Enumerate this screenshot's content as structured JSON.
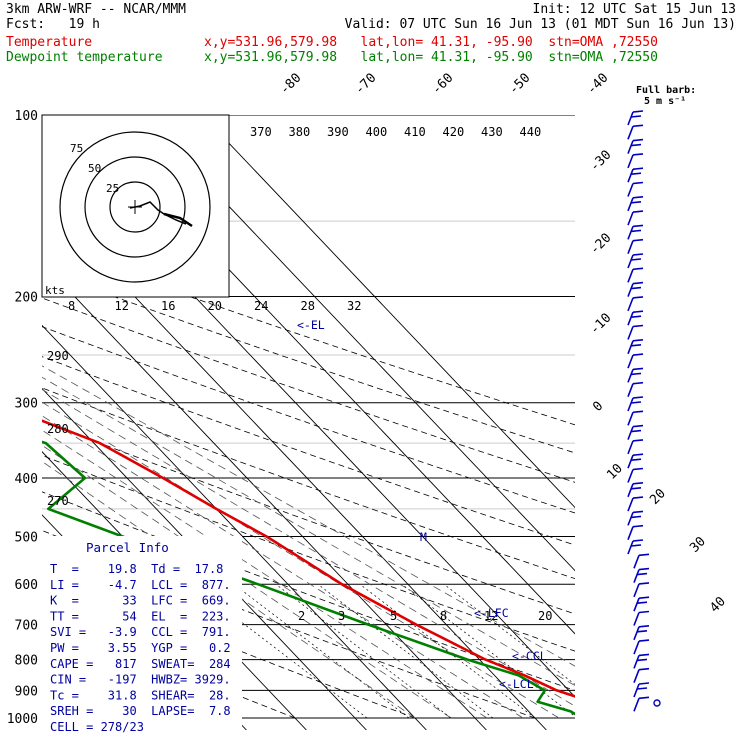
{
  "header": {
    "line1_left": "3km ARW-WRF -- NCAR/MMM",
    "line1_right": "Init: 12 UTC Sat 15 Jun 13",
    "line2_left": "Fcst:   19 h",
    "line2_right": "Valid: 07 UTC Sun 16 Jun 13 (01 MDT Sun 16 Jun 13)",
    "temp_label": "Temperature",
    "temp_info": "x,y=531.96,579.98   lat,lon= 41.31, -95.90  stn=OMA ,72550",
    "dew_label": "Dewpoint temperature",
    "dew_info": "x,y=531.96,579.98   lat,lon= 41.31, -95.90  stn=OMA ,72550"
  },
  "wind_legend": {
    "title": "Full barb:",
    "value": "5 m s⁻¹"
  },
  "colors": {
    "temperature": "#e00000",
    "dewpoint": "#008000",
    "barbs": "#0000c0",
    "grid": "#000000",
    "parcel": "#0000a0"
  },
  "hodograph": {
    "unit_label": "kts",
    "ring_labels": [
      "25",
      "50",
      "75"
    ],
    "ring_values": [
      25,
      50,
      75
    ]
  },
  "parcel_info": {
    "title": "Parcel Info",
    "rows": [
      "T  =    19.8  Td =  17.8",
      "LI =    -4.7  LCL =  877.",
      "K  =      33  LFC =  669.",
      "TT =      54  EL  =  223.",
      "SVI =   -3.9  CCL =  791.",
      "PW =    3.55  YGP =   0.2",
      "CAPE =   817  SWEAT=  284",
      "CIN =   -197  HWBZ= 3929.",
      "Tc =    31.8  SHEAR=  28.",
      "SREH =    30  LAPSE=  7.8",
      "CELL = 278/23"
    ]
  },
  "level_labels": {
    "el": "<-EL",
    "lfc": "<-LFC",
    "ccl": "<-CCL",
    "lcl": "<-LCL",
    "m": "M"
  },
  "chart_data": {
    "type": "line",
    "title": "",
    "ylabel": "",
    "xlabel": "",
    "pressure_ticks": [
      100,
      200,
      300,
      400,
      500,
      600,
      700,
      800,
      900,
      1000
    ],
    "pressure_range": [
      100,
      1000
    ],
    "skew_temp_ticks": [
      "-80",
      "-70",
      "-60",
      "-50",
      "-40",
      "-30",
      "-20",
      "-10",
      "0",
      "10",
      "20",
      "30",
      "40"
    ],
    "theta_labels": [
      "370",
      "380",
      "390",
      "400",
      "410",
      "420",
      "430",
      "440"
    ],
    "theta_low_labels": [
      "290",
      "280",
      "270"
    ],
    "mixing_ratio_top_labels": [
      "8",
      "12",
      "16",
      "20",
      "24",
      "28",
      "32"
    ],
    "mixing_ratio_low_labels": [
      "2",
      "3",
      "5",
      "8",
      "12",
      "20"
    ],
    "series": [
      {
        "name": "Temperature",
        "color": "#e00000",
        "points": [
          {
            "p": 100,
            "t": -67
          },
          {
            "p": 150,
            "t": -56
          },
          {
            "p": 200,
            "t": -50
          },
          {
            "p": 250,
            "t": -38
          },
          {
            "p": 300,
            "t": -30
          },
          {
            "p": 350,
            "t": -19
          },
          {
            "p": 400,
            "t": -14
          },
          {
            "p": 450,
            "t": -10
          },
          {
            "p": 500,
            "t": -6
          },
          {
            "p": 600,
            "t": -1
          },
          {
            "p": 700,
            "t": 5
          },
          {
            "p": 800,
            "t": 11
          },
          {
            "p": 850,
            "t": 15
          },
          {
            "p": 900,
            "t": 18
          },
          {
            "p": 940,
            "t": 22
          },
          {
            "p": 975,
            "t": 21
          },
          {
            "p": 1000,
            "t": 19.8
          }
        ]
      },
      {
        "name": "Dewpoint temperature",
        "color": "#008000",
        "points": [
          {
            "p": 100,
            "t": -85
          },
          {
            "p": 130,
            "t": -85
          },
          {
            "p": 160,
            "t": -70
          },
          {
            "p": 200,
            "t": -70
          },
          {
            "p": 250,
            "t": -58
          },
          {
            "p": 300,
            "t": -44
          },
          {
            "p": 350,
            "t": -28
          },
          {
            "p": 400,
            "t": -27
          },
          {
            "p": 450,
            "t": -38
          },
          {
            "p": 500,
            "t": -30
          },
          {
            "p": 600,
            "t": -15
          },
          {
            "p": 700,
            "t": -3
          },
          {
            "p": 800,
            "t": 8
          },
          {
            "p": 850,
            "t": 14
          },
          {
            "p": 900,
            "t": 16
          },
          {
            "p": 940,
            "t": 13
          },
          {
            "p": 975,
            "t": 17
          },
          {
            "p": 1000,
            "t": 17.8
          }
        ]
      }
    ]
  }
}
